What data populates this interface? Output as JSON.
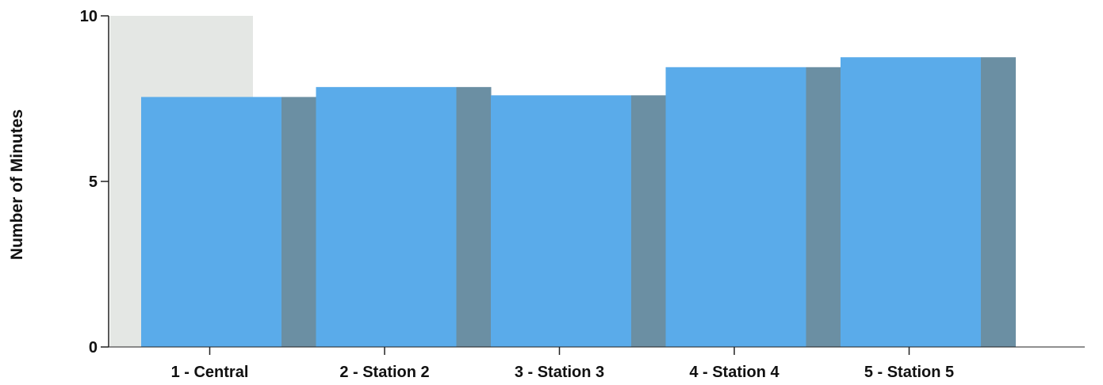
{
  "chart_data": {
    "type": "bar",
    "title": "",
    "xlabel": "",
    "ylabel": "Number of Minutes",
    "categories": [
      "1 - Central",
      "2 - Station 2",
      "3 - Station 3",
      "4 - Station 4",
      "5 - Station 5"
    ],
    "series": [
      {
        "values": [
          7.55,
          7.85,
          7.6,
          8.45,
          8.75
        ]
      }
    ],
    "ylim": [
      0,
      10
    ],
    "yticks": [
      0,
      5,
      10
    ],
    "grid": false,
    "legend": "none",
    "three_d": true,
    "colors": {
      "bar_front": "#5aabea",
      "bar_side": "#6b8fa3",
      "plot_back": "#e4e7e4",
      "axis": "#222222"
    }
  }
}
